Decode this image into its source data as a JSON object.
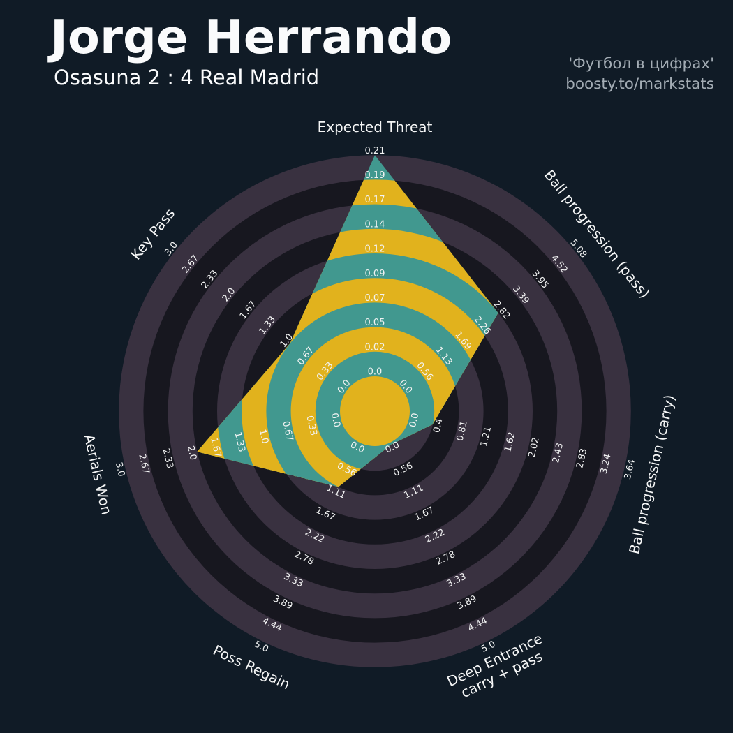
{
  "header": {
    "title": "Jorge Herrando",
    "subtitle": "Osasuna 2 : 4 Real Madrid"
  },
  "watermark": {
    "line1": "'Футбол в цифрах'",
    "line2": "boosty.to/markstats"
  },
  "chart_data": {
    "type": "radar",
    "title": "Jorge Herrando",
    "subtitle": "Osasuna 2 : 4 Real Madrid",
    "legend_position": "none",
    "grid": "concentric-alternating-rings",
    "num_rings": 9,
    "center_hole": true,
    "axes": [
      {
        "label": "Expected Threat",
        "label_lines": [
          "Expected Threat"
        ],
        "value": 0.21,
        "min": 0.0,
        "max": 0.21,
        "ticks": [
          "0.0",
          "0.02",
          "0.05",
          "0.07",
          "0.09",
          "0.12",
          "0.14",
          "0.17",
          "0.19",
          "0.21"
        ]
      },
      {
        "label": "Ball progression (pass)",
        "label_lines": [
          "Ball progression (pass)"
        ],
        "value": 2.82,
        "min": 0.0,
        "max": 5.08,
        "ticks": [
          "0.0",
          "0.56",
          "1.13",
          "1.69",
          "2.26",
          "2.82",
          "3.39",
          "3.95",
          "4.52",
          "5.08"
        ]
      },
      {
        "label": "Ball progression (carry)",
        "label_lines": [
          "Ball progression (carry)"
        ],
        "value": 0.4,
        "min": 0.0,
        "max": 3.64,
        "ticks": [
          "0.0",
          "0.4",
          "0.81",
          "1.21",
          "1.62",
          "2.02",
          "2.43",
          "2.83",
          "3.24",
          "3.64"
        ]
      },
      {
        "label": "Deep Entrance carry + pass",
        "label_lines": [
          "Deep Entrance",
          "carry + pass"
        ],
        "value": 0.05,
        "min": 0.0,
        "max": 5.0,
        "ticks": [
          "0.0",
          "0.56",
          "1.11",
          "1.67",
          "2.22",
          "2.78",
          "3.33",
          "3.89",
          "4.44",
          "5.0"
        ]
      },
      {
        "label": "Poss Regain",
        "label_lines": [
          "Poss Regain"
        ],
        "value": 1.11,
        "min": 0.0,
        "max": 5.0,
        "ticks": [
          "0.0",
          "0.56",
          "1.11",
          "1.67",
          "2.22",
          "2.78",
          "3.33",
          "3.89",
          "4.44",
          "5.0"
        ]
      },
      {
        "label": "Aerials Won",
        "label_lines": [
          "Aerials Won"
        ],
        "value": 2.0,
        "min": 0.0,
        "max": 3.0,
        "ticks": [
          "0.0",
          "0.33",
          "0.67",
          "1.0",
          "1.33",
          "1.67",
          "2.0",
          "2.33",
          "2.67",
          "3.0"
        ]
      },
      {
        "label": "Key Pass",
        "label_lines": [
          "Key Pass"
        ],
        "value": 1.0,
        "min": 0.0,
        "max": 3.0,
        "ticks": [
          "0.0",
          "0.33",
          "0.67",
          "1.0",
          "1.33",
          "1.67",
          "2.0",
          "2.33",
          "2.67",
          "3.0"
        ]
      }
    ],
    "colors": {
      "background": "#101B26",
      "ring_dark": "#17171F",
      "ring_light": "#393140",
      "fill_teal": "#41988F",
      "fill_yellow": "#E1B21D",
      "center_circle": "#E1B21D",
      "tick_text": "#F2F3F3",
      "axis_text": "#F5F6F6",
      "title_text": "#FAFBFC",
      "watermark_text": "#A3ACB4"
    }
  }
}
